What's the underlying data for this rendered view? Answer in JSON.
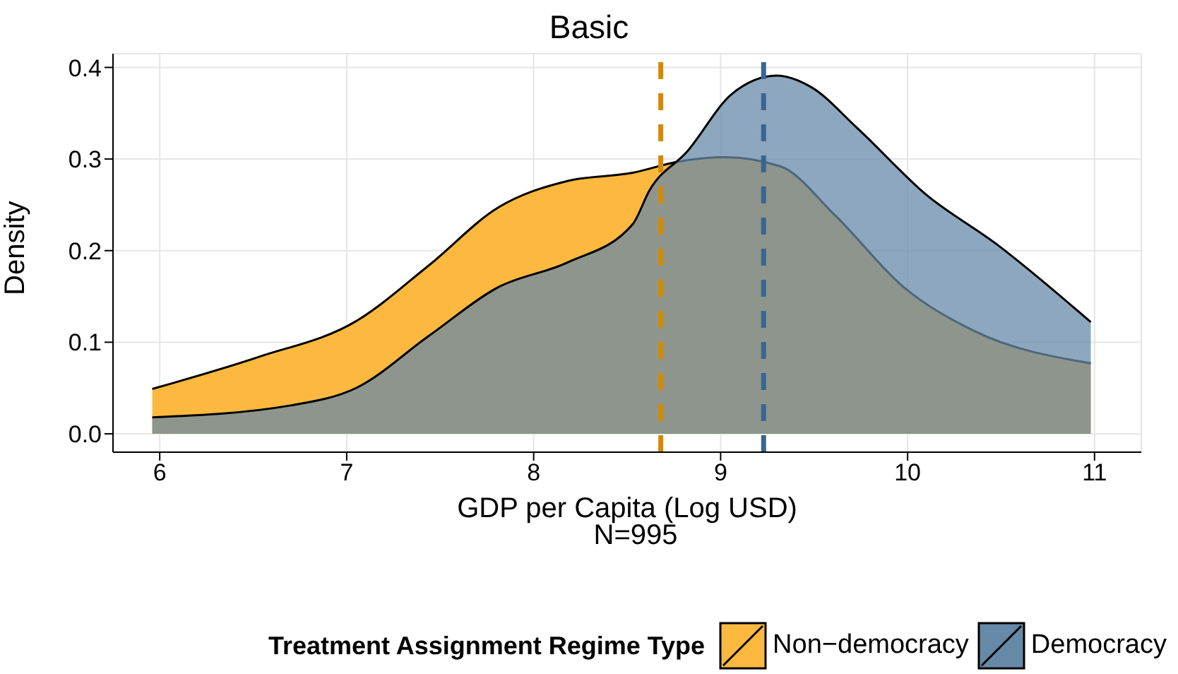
{
  "chart_data": {
    "type": "area",
    "title": "Basic",
    "xlabel": "GDP per Capita (Log USD)",
    "ylabel": "Density",
    "annotations": [
      "N=995"
    ],
    "legend_title": "Treatment Assignment Regime Type",
    "legend": "bottom",
    "grid": true,
    "xlim": [
      5.75,
      11.25
    ],
    "xticks": [
      6,
      7,
      8,
      9,
      10,
      11
    ],
    "ylim": [
      -0.02,
      0.415
    ],
    "yticks": [
      {
        "value": 0,
        "label": "0.0"
      },
      {
        "value": 0.1,
        "label": "0.1"
      },
      {
        "value": 0.2,
        "label": "0.2"
      },
      {
        "value": 0.3,
        "label": "0.3"
      },
      {
        "value": 0.4,
        "label": "0.4"
      }
    ],
    "series": [
      {
        "name": "Non−democracy",
        "color": "#fdb93f",
        "x": [
          5.96,
          6.53,
          7.05,
          7.44,
          7.81,
          8.18,
          8.53,
          8.77,
          9.02,
          9.32,
          9.61,
          9.98,
          10.35,
          10.98
        ],
        "values": [
          0.049,
          0.084,
          0.123,
          0.184,
          0.247,
          0.276,
          0.285,
          0.297,
          0.302,
          0.292,
          0.239,
          0.16,
          0.113,
          0.077
        ]
      },
      {
        "name": "Democracy",
        "color": "#6789a8",
        "x": [
          5.96,
          6.7,
          7.05,
          7.44,
          7.81,
          8.18,
          8.53,
          8.62,
          8.82,
          9.06,
          9.3,
          9.48,
          9.73,
          10.1,
          10.47,
          10.98
        ],
        "values": [
          0.018,
          0.031,
          0.05,
          0.107,
          0.16,
          0.187,
          0.229,
          0.266,
          0.308,
          0.371,
          0.391,
          0.379,
          0.334,
          0.261,
          0.208,
          0.122
        ]
      }
    ],
    "ref_lines": [
      {
        "axis": "x",
        "value": 8.68,
        "color": "#d48a00",
        "line_style": "dashed"
      },
      {
        "axis": "x",
        "value": 9.23,
        "color": "#3a6591",
        "line_style": "dashed"
      }
    ]
  }
}
